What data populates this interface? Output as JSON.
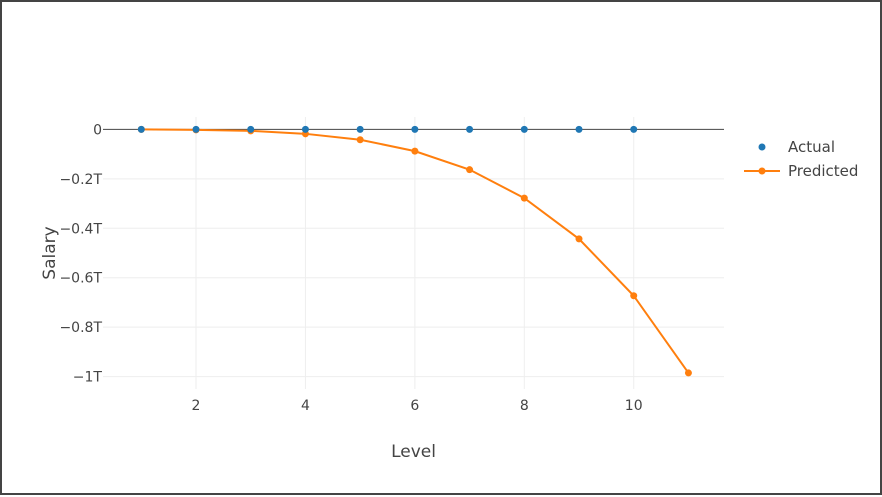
{
  "chart_data": {
    "type": "line",
    "xlabel": "Level",
    "ylabel": "Salary",
    "xlim": [
      0.3,
      11.65
    ],
    "ylim": [
      -1.05,
      0.05
    ],
    "x_ticks": [
      2,
      4,
      6,
      8,
      10
    ],
    "x_tick_labels": [
      "2",
      "4",
      "6",
      "8",
      "10"
    ],
    "y_ticks": [
      0,
      -0.2,
      -0.4,
      -0.6,
      -0.8,
      -1
    ],
    "y_tick_labels": [
      "0",
      "−0.2T",
      "−0.4T",
      "−0.6T",
      "−0.8T",
      "−1T"
    ],
    "y_unit": "T",
    "grid": true,
    "legend_position": "top-right",
    "series": [
      {
        "name": "Actual",
        "mode": "markers",
        "color": "#1f77b4",
        "x": [
          1,
          2,
          3,
          4,
          5,
          6,
          7,
          8,
          9,
          10
        ],
        "y": [
          0,
          0,
          0,
          0,
          0,
          0,
          0,
          0,
          0,
          0
        ]
      },
      {
        "name": "Predicted",
        "mode": "lines+markers",
        "color": "#ff7f0e",
        "x": [
          1,
          2,
          3,
          4,
          5,
          6,
          7,
          8,
          9,
          10,
          11
        ],
        "y": [
          0,
          -0.002,
          -0.006,
          -0.018,
          -0.042,
          -0.088,
          -0.163,
          -0.278,
          -0.443,
          -0.673,
          -0.985
        ]
      }
    ]
  }
}
